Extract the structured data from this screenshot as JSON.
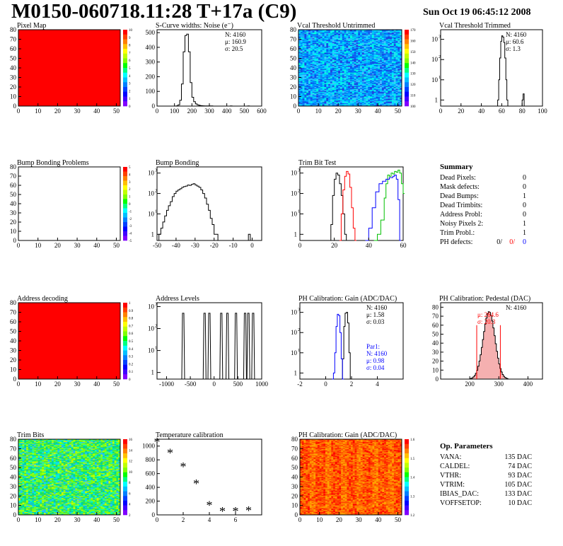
{
  "header": {
    "title": "M0150-060718.11:28 T+17a (C9)",
    "date": "Sun Oct 19 06:45:12 2008"
  },
  "colors": {
    "red": "#ff0000",
    "blue": "#0000ff",
    "green": "#00c000",
    "black": "#000000"
  },
  "chart_data": [
    {
      "id": "pixel_map",
      "type": "heatmap",
      "title": "Pixel Map",
      "xlim": [
        0,
        52
      ],
      "ylim": [
        0,
        80
      ],
      "xticks": [
        0,
        10,
        20,
        30,
        40,
        50
      ],
      "yticks": [
        0,
        10,
        20,
        30,
        40,
        50,
        60,
        70,
        80
      ],
      "fill": "uniform-red",
      "palette_ticks": [
        "10",
        "9",
        "8",
        "7",
        "6",
        "5",
        "4",
        "3",
        "2",
        "1",
        "0"
      ]
    },
    {
      "id": "scurve",
      "type": "line",
      "title": "S-Curve widths: Noise (e⁻)",
      "xlim": [
        0,
        600
      ],
      "ylim": [
        0,
        520
      ],
      "xticks": [
        0,
        100,
        200,
        300,
        400,
        500,
        600
      ],
      "yticks": [
        0,
        100,
        200,
        300,
        400,
        500
      ],
      "stats": [
        "N: 4160",
        "μ: 160.9",
        "σ: 20.5"
      ],
      "series": [
        {
          "color": "black",
          "x": [
            100,
            110,
            120,
            130,
            140,
            150,
            160,
            170,
            180,
            190,
            200,
            210,
            220,
            230,
            240,
            250,
            260,
            270,
            290,
            320,
            420,
            430,
            520,
            530
          ],
          "y": [
            0,
            2,
            8,
            40,
            150,
            370,
            480,
            490,
            370,
            160,
            60,
            30,
            15,
            8,
            5,
            3,
            2,
            1,
            1,
            0,
            1,
            0,
            1,
            0
          ]
        }
      ]
    },
    {
      "id": "vcal_untrimmed",
      "type": "heatmap",
      "title": "Vcal Threshold Untrimmed",
      "xlim": [
        0,
        52
      ],
      "ylim": [
        0,
        80
      ],
      "xticks": [
        0,
        10,
        20,
        30,
        40,
        50
      ],
      "yticks": [
        0,
        10,
        20,
        30,
        40,
        50,
        60,
        70,
        80
      ],
      "fill": "noisy-blue",
      "palette_ticks": [
        "170",
        "160",
        "150",
        "140",
        "130",
        "120",
        "110",
        "100"
      ]
    },
    {
      "id": "vcal_trimmed",
      "type": "line",
      "title": "Vcal Threshold Trimmed",
      "log_y": true,
      "xlim": [
        0,
        100
      ],
      "ylim": [
        0.5,
        3000
      ],
      "xticks": [
        0,
        20,
        40,
        60,
        80,
        100
      ],
      "stats": [
        "N: 4160",
        "μ: 60.6",
        "σ:  1.3"
      ],
      "series": [
        {
          "color": "black",
          "x": [
            55,
            56,
            57,
            58,
            59,
            60,
            61,
            62,
            63,
            64,
            65,
            66,
            80,
            81,
            82
          ],
          "y": [
            0.5,
            1,
            10,
            120,
            800,
            1500,
            1300,
            700,
            120,
            10,
            1,
            0.5,
            1,
            2,
            0.5
          ]
        }
      ]
    },
    {
      "id": "bump_problems",
      "type": "heatmap",
      "title": "Bump Bonding Problems",
      "xlim": [
        0,
        52
      ],
      "ylim": [
        0,
        80
      ],
      "xticks": [
        0,
        10,
        20,
        30,
        40,
        50
      ],
      "yticks": [
        0,
        10,
        20,
        30,
        40,
        50,
        60,
        70,
        80
      ],
      "fill": "empty",
      "palette_ticks": [
        "5",
        "4",
        "3",
        "2",
        "1",
        "0",
        "-1",
        "-2",
        "-3",
        "-4",
        "-5"
      ]
    },
    {
      "id": "bump_bonding",
      "type": "line",
      "title": "Bump Bonding",
      "log_y": true,
      "xlim": [
        -50,
        5
      ],
      "ylim": [
        0.5,
        2000
      ],
      "xticks": [
        -50,
        -40,
        -30,
        -20,
        -10,
        0
      ],
      "series": [
        {
          "color": "black",
          "x": [
            -50,
            -49,
            -48,
            -47,
            -46,
            -45,
            -44,
            -43,
            -42,
            -41,
            -40,
            -39,
            -38,
            -37,
            -36,
            -35,
            -34,
            -33,
            -32,
            -31,
            -30,
            -29,
            -28,
            -27,
            -26,
            -25,
            -24,
            -23,
            -22,
            -21,
            -20,
            -19,
            -18,
            -17,
            -2,
            -1
          ],
          "y": [
            0.5,
            1,
            2,
            4,
            8,
            15,
            25,
            40,
            70,
            100,
            130,
            150,
            170,
            200,
            220,
            230,
            260,
            250,
            280,
            300,
            260,
            230,
            200,
            150,
            100,
            60,
            30,
            15,
            6,
            3,
            1,
            1,
            0.5,
            0.5,
            1,
            0.5
          ]
        }
      ]
    },
    {
      "id": "trim_bit_test",
      "type": "line",
      "title": "Trim Bit Test",
      "log_y": true,
      "xlim": [
        0,
        60
      ],
      "ylim": [
        0.5,
        2000
      ],
      "xticks": [
        0,
        20,
        40,
        60
      ],
      "series": [
        {
          "color": "black",
          "x": [
            17,
            18,
            19,
            20,
            21,
            22,
            23,
            24,
            25,
            26,
            27
          ],
          "y": [
            0.5,
            3,
            80,
            500,
            1000,
            800,
            300,
            80,
            10,
            1,
            0.5
          ]
        },
        {
          "color": "red",
          "x": [
            23,
            24,
            25,
            26,
            27,
            28,
            29,
            30,
            31,
            32
          ],
          "y": [
            0.5,
            10,
            150,
            700,
            1200,
            900,
            200,
            20,
            2,
            0.5
          ]
        },
        {
          "color": "green",
          "x": [
            43,
            45,
            47,
            49,
            50,
            51,
            52,
            53,
            54,
            55,
            56,
            57,
            58,
            59,
            60
          ],
          "y": [
            0.5,
            1,
            5,
            60,
            300,
            800,
            700,
            1000,
            900,
            1200,
            1100,
            1400,
            1000,
            300,
            100
          ]
        },
        {
          "color": "blue",
          "x": [
            38,
            40,
            42,
            44,
            46,
            48,
            50,
            52,
            54,
            55,
            56,
            57,
            58
          ],
          "y": [
            0.5,
            2,
            20,
            120,
            300,
            400,
            500,
            600,
            700,
            800,
            500,
            50,
            0.5
          ]
        }
      ]
    },
    {
      "id": "address_decoding",
      "type": "heatmap",
      "title": "Address decoding",
      "xlim": [
        0,
        52
      ],
      "ylim": [
        0,
        80
      ],
      "xticks": [
        0,
        10,
        20,
        30,
        40,
        50
      ],
      "yticks": [
        0,
        10,
        20,
        30,
        40,
        50,
        60,
        70,
        80
      ],
      "fill": "uniform-red",
      "palette_ticks": [
        "1",
        "0.9",
        "0.8",
        "0.7",
        "0.6",
        "0.5",
        "0.4",
        "0.3",
        "0.2",
        "0.1",
        "0"
      ]
    },
    {
      "id": "address_levels",
      "type": "line",
      "title": "Address Levels",
      "log_y": true,
      "xlim": [
        -1200,
        1000
      ],
      "ylim": [
        0.5,
        1500
      ],
      "xticks": [
        -1000,
        -500,
        0,
        500,
        1000
      ],
      "spikes": [
        -650,
        -200,
        -100,
        150,
        280,
        460,
        650,
        720,
        820
      ],
      "spike_height": 500
    },
    {
      "id": "ph_gain_hist",
      "type": "line",
      "title": "PH Calibration: Gain (ADC/DAC)",
      "log_y": true,
      "xlim": [
        -2,
        6
      ],
      "ylim": [
        0.5,
        3000
      ],
      "xticks": [
        -2,
        0,
        2,
        4
      ],
      "stats": [
        "N: 4160",
        "μ: 1.58",
        "σ: 0.03"
      ],
      "stats2": [
        "Par1:",
        "N: 4160",
        "μ: 0.98",
        "σ: 0.04"
      ],
      "series": [
        {
          "color": "black",
          "x": [
            1.2,
            1.3,
            1.4,
            1.5,
            1.6,
            1.7,
            1.8,
            1.9
          ],
          "y": [
            0.5,
            5,
            200,
            900,
            1000,
            300,
            10,
            0.5
          ]
        },
        {
          "color": "blue",
          "x": [
            0.5,
            0.6,
            0.7,
            0.8,
            0.9,
            1.0,
            1.1,
            1.2,
            1.3
          ],
          "y": [
            0.5,
            1,
            10,
            200,
            800,
            700,
            100,
            5,
            0.5
          ]
        }
      ]
    },
    {
      "id": "ph_pedestal",
      "type": "line",
      "title": "PH Calibration: Pedestal (DAC)",
      "xlim": [
        100,
        450
      ],
      "ylim": [
        0,
        85
      ],
      "xticks": [
        200,
        300,
        400
      ],
      "yticks": [
        0,
        10,
        20,
        30,
        40,
        50,
        60,
        70,
        80
      ],
      "stats": [
        "N: 4160"
      ],
      "stats_red": [
        "μ: 264.6",
        "σ: 20.3"
      ],
      "gauss": {
        "mean": 264.6,
        "sigma": 20.3,
        "peak": 75
      }
    },
    {
      "id": "trim_bits",
      "type": "heatmap",
      "title": "Trim Bits",
      "xlim": [
        0,
        52
      ],
      "ylim": [
        0,
        80
      ],
      "xticks": [
        0,
        10,
        20,
        30,
        40,
        50
      ],
      "yticks": [
        0,
        10,
        20,
        30,
        40,
        50,
        60,
        70,
        80
      ],
      "fill": "noisy-green",
      "palette_ticks": [
        "16",
        "14",
        "12",
        "10",
        "8",
        "6",
        "4",
        "2"
      ]
    },
    {
      "id": "temperature",
      "type": "scatter",
      "title": "Temperature calibration",
      "xlim": [
        0,
        8
      ],
      "ylim": [
        0,
        1100
      ],
      "xticks": [
        0,
        2,
        4,
        6
      ],
      "yticks": [
        0,
        200,
        400,
        600,
        800,
        1000
      ],
      "series": [
        {
          "color": "black",
          "x": [
            0,
            1,
            2,
            3,
            4,
            5,
            6,
            7
          ],
          "y": [
            1050,
            890,
            690,
            440,
            130,
            40,
            40,
            50
          ]
        }
      ]
    },
    {
      "id": "ph_gain_map",
      "type": "heatmap",
      "title": "PH Calibration: Gain (ADC/DAC)",
      "xlim": [
        0,
        52
      ],
      "ylim": [
        0,
        80
      ],
      "xticks": [
        0,
        10,
        20,
        30,
        40,
        50
      ],
      "yticks": [
        0,
        10,
        20,
        30,
        40,
        50,
        60,
        70,
        80
      ],
      "fill": "noisy-red",
      "palette_ticks": [
        "1.6",
        "1.5",
        "1.4",
        "1.3",
        "1.2"
      ]
    }
  ],
  "summary": {
    "title": "Summary",
    "rows": [
      {
        "label": "Dead Pixels:",
        "value": "0"
      },
      {
        "label": "Mask defects:",
        "value": "0"
      },
      {
        "label": "Dead Bumps:",
        "value": "1"
      },
      {
        "label": "Dead Trimbits:",
        "value": "0"
      },
      {
        "label": "Address Probl:",
        "value": "0"
      },
      {
        "label": "Noisy Pixels 2:",
        "value": "1"
      },
      {
        "label": "Trim Probl.:",
        "value": "1"
      }
    ],
    "ph_label": "PH defects:",
    "ph_black": "0/",
    "ph_red": "0/",
    "ph_blue": "0"
  },
  "op_parameters": {
    "title": "Op. Parameters",
    "rows": [
      {
        "label": "VANA:",
        "value": "135 DAC"
      },
      {
        "label": "CALDEL:",
        "value": "74 DAC"
      },
      {
        "label": "VTHR:",
        "value": "93 DAC"
      },
      {
        "label": "VTRIM:",
        "value": "105 DAC"
      },
      {
        "label": "IBIAS_DAC:",
        "value": "133 DAC"
      },
      {
        "label": "VOFFSETOP:",
        "value": "10 DAC"
      }
    ]
  }
}
